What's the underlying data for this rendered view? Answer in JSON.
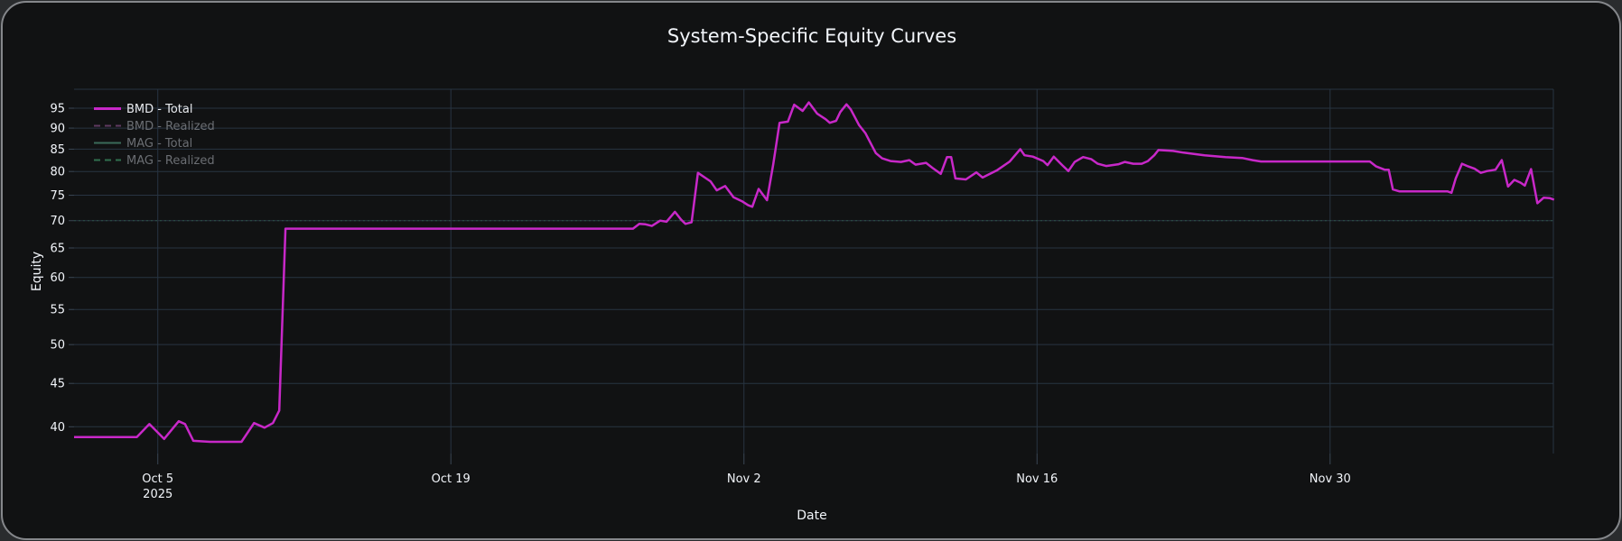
{
  "card": {
    "title": "System-Specific Equity Curves"
  },
  "axes": {
    "x_title": "Date",
    "y_title": "Equity",
    "x_ticks": [
      {
        "t": 4,
        "label": "Oct 5",
        "sublabel": "2025"
      },
      {
        "t": 18,
        "label": "Oct 19",
        "sublabel": ""
      },
      {
        "t": 32,
        "label": "Nov 2",
        "sublabel": ""
      },
      {
        "t": 46,
        "label": "Nov 16",
        "sublabel": ""
      },
      {
        "t": 60,
        "label": "Nov 30",
        "sublabel": ""
      }
    ],
    "y_ticks": [
      40,
      45,
      50,
      55,
      60,
      65,
      70,
      75,
      80,
      85,
      90,
      95
    ],
    "y_unlabeled_gridlines": [
      100
    ],
    "y_scale": "log"
  },
  "legend": [
    {
      "label": "BMD - Total",
      "color": "#c828c8",
      "dash": "solid",
      "active": true
    },
    {
      "label": "BMD - Realized",
      "color": "#5f3a60",
      "dash": "dash",
      "active": false
    },
    {
      "label": "MAG - Total",
      "color": "#3a6b5a",
      "dash": "solid",
      "active": false
    },
    {
      "label": "MAG - Realized",
      "color": "#31704f",
      "dash": "dash",
      "active": false
    }
  ],
  "colors": {
    "background": "#111213",
    "outer_background": "#2a2c2e",
    "card_border": "#85878b",
    "grid": "#283442",
    "tick_mark": "#3a4document654",
    "tick": "#3a4654",
    "text": "#f2f5fa",
    "dim_text": "#6b6e73",
    "bmd_total": "#c828c8",
    "mag_faint_line": "#2e5147"
  },
  "chart_data": {
    "type": "line",
    "title": "System-Specific Equity Curves",
    "xlabel": "Date",
    "ylabel": "Equity",
    "x_unit": "days since Oct 1 2025",
    "x_range": [
      0,
      70.7
    ],
    "y_range_approx": [
      37.2,
      100.1
    ],
    "y_scale": "log",
    "grid": true,
    "legend_position": "top-left",
    "series": [
      {
        "name": "BMD - Total",
        "visible": true,
        "points": [
          [
            0,
            38.9
          ],
          [
            1.5,
            38.9
          ],
          [
            3,
            38.9
          ],
          [
            3.6,
            40.3
          ],
          [
            4.3,
            38.7
          ],
          [
            5,
            40.6
          ],
          [
            5.3,
            40.3
          ],
          [
            5.7,
            38.5
          ],
          [
            6.5,
            38.4
          ],
          [
            7.3,
            38.4
          ],
          [
            8,
            38.4
          ],
          [
            8.6,
            40.4
          ],
          [
            9.1,
            39.9
          ],
          [
            9.5,
            40.4
          ],
          [
            9.8,
            41.8
          ],
          [
            10.1,
            68.5
          ],
          [
            13,
            68.5
          ],
          [
            17,
            68.5
          ],
          [
            21,
            68.5
          ],
          [
            25,
            68.5
          ],
          [
            26.7,
            68.5
          ],
          [
            27,
            69.4
          ],
          [
            27.3,
            69.3
          ],
          [
            27.6,
            69
          ],
          [
            28,
            70
          ],
          [
            28.3,
            69.8
          ],
          [
            28.7,
            71.7
          ],
          [
            29,
            70.2
          ],
          [
            29.2,
            69.4
          ],
          [
            29.5,
            69.7
          ],
          [
            29.8,
            79.7
          ],
          [
            30.4,
            77.9
          ],
          [
            30.7,
            76
          ],
          [
            31.1,
            76.9
          ],
          [
            31.5,
            74.6
          ],
          [
            31.9,
            73.8
          ],
          [
            32.2,
            73
          ],
          [
            32.4,
            72.7
          ],
          [
            32.7,
            76.3
          ],
          [
            33.1,
            74
          ],
          [
            33.4,
            81.6
          ],
          [
            33.7,
            91.3
          ],
          [
            34.1,
            91.6
          ],
          [
            34.4,
            95.9
          ],
          [
            34.8,
            94.3
          ],
          [
            35.1,
            96.5
          ],
          [
            35.5,
            93.6
          ],
          [
            35.9,
            92.2
          ],
          [
            36.1,
            91.3
          ],
          [
            36.4,
            91.8
          ],
          [
            36.6,
            94
          ],
          [
            36.9,
            96
          ],
          [
            37.1,
            94.7
          ],
          [
            37.5,
            90.7
          ],
          [
            37.8,
            88.8
          ],
          [
            38.1,
            85.9
          ],
          [
            38.3,
            84.1
          ],
          [
            38.6,
            82.9
          ],
          [
            39,
            82.3
          ],
          [
            39.5,
            82.1
          ],
          [
            39.9,
            82.5
          ],
          [
            40.2,
            81.5
          ],
          [
            40.7,
            81.9
          ],
          [
            41,
            80.8
          ],
          [
            41.4,
            79.5
          ],
          [
            41.7,
            83.2
          ],
          [
            41.9,
            83.2
          ],
          [
            42.1,
            78.5
          ],
          [
            42.6,
            78.3
          ],
          [
            43.1,
            79.8
          ],
          [
            43.4,
            78.7
          ],
          [
            44.1,
            80.3
          ],
          [
            44.7,
            82.2
          ],
          [
            45.2,
            85
          ],
          [
            45.4,
            83.6
          ],
          [
            45.8,
            83.3
          ],
          [
            46.3,
            82.3
          ],
          [
            46.5,
            81.4
          ],
          [
            46.8,
            83.3
          ],
          [
            47.2,
            81.4
          ],
          [
            47.5,
            80.1
          ],
          [
            47.8,
            82.1
          ],
          [
            48.2,
            83.2
          ],
          [
            48.6,
            82.7
          ],
          [
            48.9,
            81.7
          ],
          [
            49.3,
            81.2
          ],
          [
            49.9,
            81.6
          ],
          [
            50.2,
            82.1
          ],
          [
            50.6,
            81.7
          ],
          [
            51,
            81.7
          ],
          [
            51.3,
            82.3
          ],
          [
            51.6,
            83.6
          ],
          [
            51.8,
            84.8
          ],
          [
            52.5,
            84.6
          ],
          [
            53,
            84.2
          ],
          [
            54,
            83.6
          ],
          [
            55,
            83.2
          ],
          [
            55.8,
            83
          ],
          [
            56.3,
            82.5
          ],
          [
            56.7,
            82.2
          ],
          [
            58,
            82.2
          ],
          [
            60,
            82.2
          ],
          [
            61.9,
            82.2
          ],
          [
            62.2,
            81.1
          ],
          [
            62.6,
            80.4
          ],
          [
            62.8,
            80.4
          ],
          [
            63,
            76.2
          ],
          [
            63.3,
            75.8
          ],
          [
            64.5,
            75.8
          ],
          [
            65.6,
            75.8
          ],
          [
            65.8,
            75.5
          ],
          [
            66,
            78.5
          ],
          [
            66.3,
            81.7
          ],
          [
            66.6,
            81.1
          ],
          [
            66.9,
            80.6
          ],
          [
            67.2,
            79.7
          ],
          [
            67.5,
            80.1
          ],
          [
            67.9,
            80.4
          ],
          [
            68.2,
            82.5
          ],
          [
            68.5,
            76.8
          ],
          [
            68.8,
            78.2
          ],
          [
            69.1,
            77.6
          ],
          [
            69.3,
            77
          ],
          [
            69.6,
            80.5
          ],
          [
            69.9,
            73.4
          ],
          [
            70.2,
            74.5
          ],
          [
            70.5,
            74.4
          ],
          [
            70.7,
            74.1
          ]
        ]
      },
      {
        "name": "MAG - Total",
        "visible": "faint",
        "points": [
          [
            0,
            70
          ],
          [
            70.7,
            70
          ]
        ]
      },
      {
        "name": "BMD - Realized",
        "visible": false,
        "points": []
      },
      {
        "name": "MAG - Realized",
        "visible": false,
        "points": []
      }
    ]
  }
}
